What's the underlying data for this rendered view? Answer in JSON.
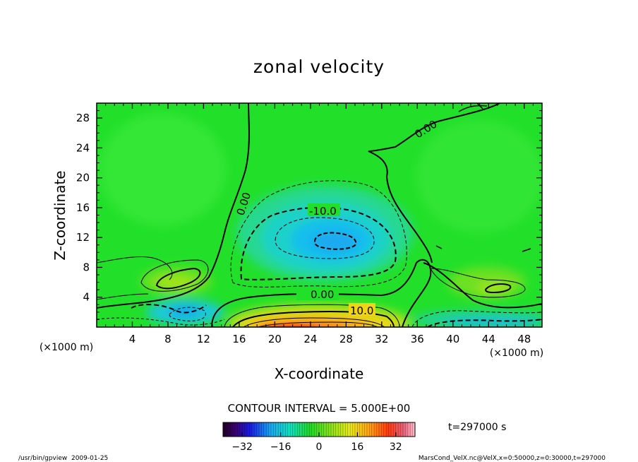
{
  "chart_data": {
    "type": "heatmap",
    "title": "zonal velocity",
    "xlabel": "X-coordinate",
    "ylabel": "Z-coordinate",
    "x_unit_label": "(×1000 m)",
    "z_unit_label": "(×1000 m)",
    "xlim": [
      0,
      50
    ],
    "ylim": [
      0,
      30
    ],
    "x_ticks": [
      4,
      8,
      12,
      16,
      20,
      24,
      28,
      32,
      36,
      40,
      44,
      48
    ],
    "y_ticks": [
      4,
      8,
      12,
      16,
      20,
      24,
      28
    ],
    "contour_interval_text": "CONTOUR INTERVAL = 5.000E+00",
    "time_text": "t=297000 s",
    "contour_labels": [
      "0.00",
      "0.00",
      "0.00",
      "-10.0",
      "10.0"
    ],
    "colorbar": {
      "range": [
        -40,
        40
      ],
      "tick_values": [
        -32,
        -16,
        0,
        16,
        32
      ],
      "tick_labels": [
        "−32",
        "−16",
        "0",
        "16",
        "32"
      ]
    },
    "features": [
      {
        "sign": "negative",
        "center_x": 26,
        "center_z": 11.5,
        "min": -20
      },
      {
        "sign": "positive",
        "center_x": 24,
        "center_z": 0.8,
        "max": 30
      },
      {
        "sign": "positive",
        "center_x": 10,
        "center_z": 6,
        "max": 10
      },
      {
        "sign": "positive",
        "center_x": 44,
        "center_z": 5,
        "max": 10
      },
      {
        "sign": "negative",
        "center_x": 10,
        "center_z": 2,
        "min": -10
      }
    ]
  },
  "footer": {
    "left": "/usr/bin/gpview  2009-01-25",
    "right": "MarsCond_VelX.nc@VelX,x=0:50000,z=0:30000,t=297000"
  },
  "colors": {
    "background_green": "#22e02a",
    "negative": "#19c8ee",
    "positive": "#ff4418"
  }
}
